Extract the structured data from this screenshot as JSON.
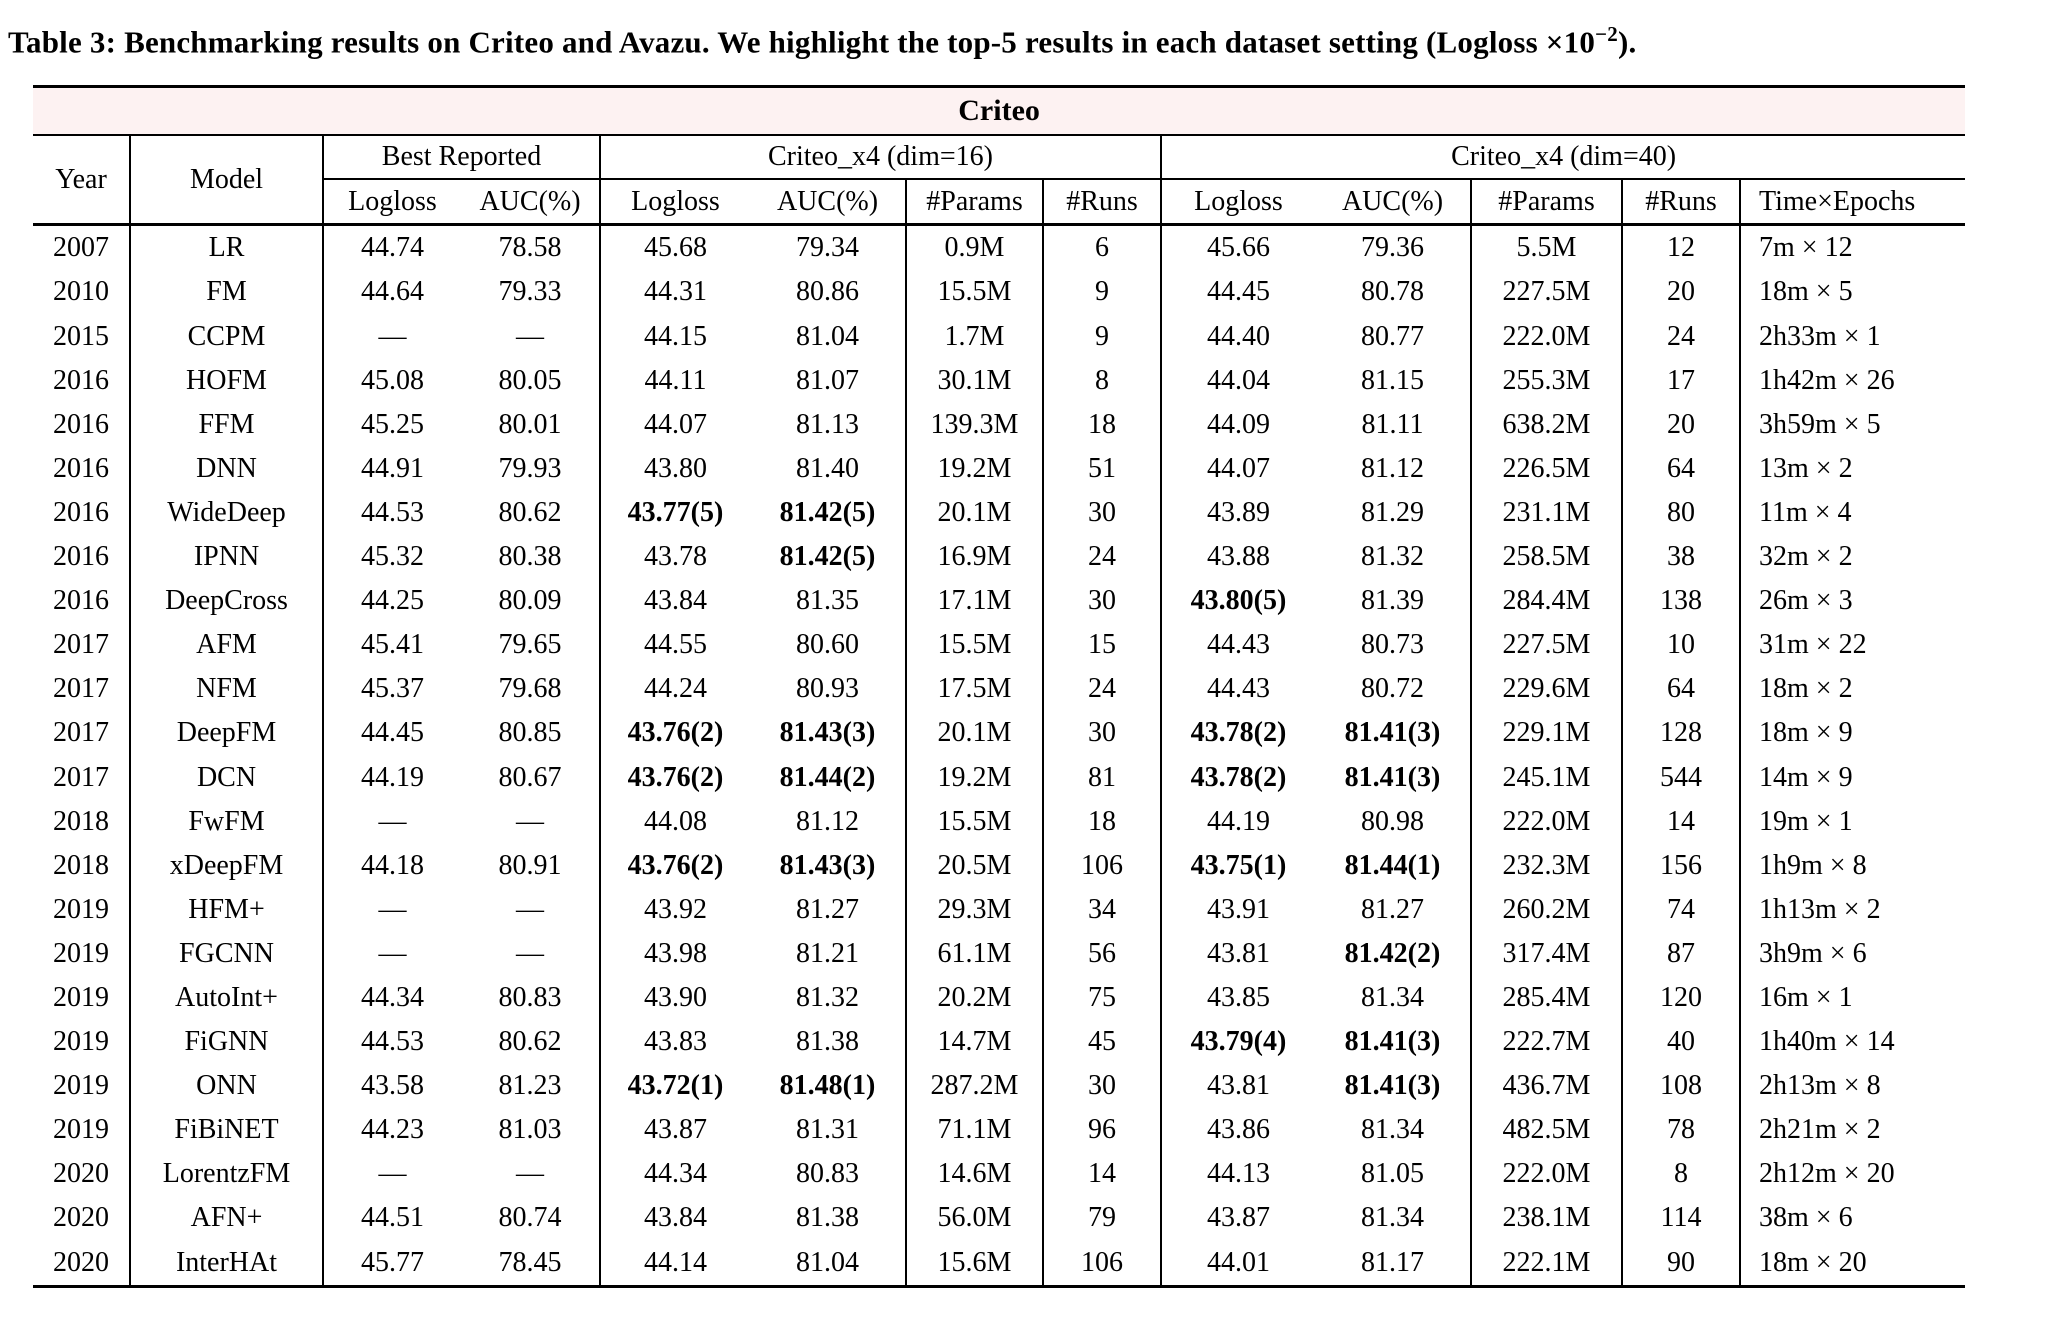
{
  "title": {
    "prefix": "Table 3: Benchmarking results on Criteo and Avazu. We highlight the top-5 results in each dataset setting (Logloss ×10",
    "sup": "−2",
    "suffix": ")."
  },
  "colors": {
    "banner_bg": "#FDF2F2",
    "rule_color": "#000000"
  },
  "table": {
    "banner": "Criteo",
    "groups": {
      "best_reported": "Best Reported",
      "dim16": "Criteo_x4 (dim=16)",
      "dim40": "Criteo_x4 (dim=40)"
    },
    "columns": {
      "year": "Year",
      "model": "Model",
      "logloss": "Logloss",
      "auc": "AUC(%)",
      "params": "#Params",
      "runs": "#Runs",
      "time": "Time×Epochs"
    },
    "rows": [
      {
        "cells": [
          "2007",
          "LR",
          "44.74",
          "78.58",
          "45.68",
          "79.34",
          "0.9M",
          "6",
          "45.66",
          "79.36",
          "5.5M",
          "12",
          "7m × 12"
        ],
        "bold": []
      },
      {
        "cells": [
          "2010",
          "FM",
          "44.64",
          "79.33",
          "44.31",
          "80.86",
          "15.5M",
          "9",
          "44.45",
          "80.78",
          "227.5M",
          "20",
          "18m × 5"
        ],
        "bold": []
      },
      {
        "cells": [
          "2015",
          "CCPM",
          "—",
          "—",
          "44.15",
          "81.04",
          "1.7M",
          "9",
          "44.40",
          "80.77",
          "222.0M",
          "24",
          "2h33m × 1"
        ],
        "bold": []
      },
      {
        "cells": [
          "2016",
          "HOFM",
          "45.08",
          "80.05",
          "44.11",
          "81.07",
          "30.1M",
          "8",
          "44.04",
          "81.15",
          "255.3M",
          "17",
          "1h42m × 26"
        ],
        "bold": []
      },
      {
        "cells": [
          "2016",
          "FFM",
          "45.25",
          "80.01",
          "44.07",
          "81.13",
          "139.3M",
          "18",
          "44.09",
          "81.11",
          "638.2M",
          "20",
          "3h59m × 5"
        ],
        "bold": []
      },
      {
        "cells": [
          "2016",
          "DNN",
          "44.91",
          "79.93",
          "43.80",
          "81.40",
          "19.2M",
          "51",
          "44.07",
          "81.12",
          "226.5M",
          "64",
          "13m × 2"
        ],
        "bold": []
      },
      {
        "cells": [
          "2016",
          "WideDeep",
          "44.53",
          "80.62",
          "43.77(5)",
          "81.42(5)",
          "20.1M",
          "30",
          "43.89",
          "81.29",
          "231.1M",
          "80",
          "11m × 4"
        ],
        "bold": [
          4,
          5
        ]
      },
      {
        "cells": [
          "2016",
          "IPNN",
          "45.32",
          "80.38",
          "43.78",
          "81.42(5)",
          "16.9M",
          "24",
          "43.88",
          "81.32",
          "258.5M",
          "38",
          "32m × 2"
        ],
        "bold": [
          5
        ]
      },
      {
        "cells": [
          "2016",
          "DeepCross",
          "44.25",
          "80.09",
          "43.84",
          "81.35",
          "17.1M",
          "30",
          "43.80(5)",
          "81.39",
          "284.4M",
          "138",
          "26m × 3"
        ],
        "bold": [
          8
        ]
      },
      {
        "cells": [
          "2017",
          "AFM",
          "45.41",
          "79.65",
          "44.55",
          "80.60",
          "15.5M",
          "15",
          "44.43",
          "80.73",
          "227.5M",
          "10",
          "31m × 22"
        ],
        "bold": []
      },
      {
        "cells": [
          "2017",
          "NFM",
          "45.37",
          "79.68",
          "44.24",
          "80.93",
          "17.5M",
          "24",
          "44.43",
          "80.72",
          "229.6M",
          "64",
          "18m × 2"
        ],
        "bold": []
      },
      {
        "cells": [
          "2017",
          "DeepFM",
          "44.45",
          "80.85",
          "43.76(2)",
          "81.43(3)",
          "20.1M",
          "30",
          "43.78(2)",
          "81.41(3)",
          "229.1M",
          "128",
          "18m × 9"
        ],
        "bold": [
          4,
          5,
          8,
          9
        ]
      },
      {
        "cells": [
          "2017",
          "DCN",
          "44.19",
          "80.67",
          "43.76(2)",
          "81.44(2)",
          "19.2M",
          "81",
          "43.78(2)",
          "81.41(3)",
          "245.1M",
          "544",
          "14m × 9"
        ],
        "bold": [
          4,
          5,
          8,
          9
        ]
      },
      {
        "cells": [
          "2018",
          "FwFM",
          "—",
          "—",
          "44.08",
          "81.12",
          "15.5M",
          "18",
          "44.19",
          "80.98",
          "222.0M",
          "14",
          "19m × 1"
        ],
        "bold": []
      },
      {
        "cells": [
          "2018",
          "xDeepFM",
          "44.18",
          "80.91",
          "43.76(2)",
          "81.43(3)",
          "20.5M",
          "106",
          "43.75(1)",
          "81.44(1)",
          "232.3M",
          "156",
          "1h9m × 8"
        ],
        "bold": [
          4,
          5,
          8,
          9
        ]
      },
      {
        "cells": [
          "2019",
          "HFM+",
          "—",
          "—",
          "43.92",
          "81.27",
          "29.3M",
          "34",
          "43.91",
          "81.27",
          "260.2M",
          "74",
          "1h13m × 2"
        ],
        "bold": []
      },
      {
        "cells": [
          "2019",
          "FGCNN",
          "—",
          "—",
          "43.98",
          "81.21",
          "61.1M",
          "56",
          "43.81",
          "81.42(2)",
          "317.4M",
          "87",
          "3h9m × 6"
        ],
        "bold": [
          9
        ]
      },
      {
        "cells": [
          "2019",
          "AutoInt+",
          "44.34",
          "80.83",
          "43.90",
          "81.32",
          "20.2M",
          "75",
          "43.85",
          "81.34",
          "285.4M",
          "120",
          "16m × 1"
        ],
        "bold": []
      },
      {
        "cells": [
          "2019",
          "FiGNN",
          "44.53",
          "80.62",
          "43.83",
          "81.38",
          "14.7M",
          "45",
          "43.79(4)",
          "81.41(3)",
          "222.7M",
          "40",
          "1h40m × 14"
        ],
        "bold": [
          8,
          9
        ]
      },
      {
        "cells": [
          "2019",
          "ONN",
          "43.58",
          "81.23",
          "43.72(1)",
          "81.48(1)",
          "287.2M",
          "30",
          "43.81",
          "81.41(3)",
          "436.7M",
          "108",
          "2h13m × 8"
        ],
        "bold": [
          4,
          5,
          9
        ]
      },
      {
        "cells": [
          "2019",
          "FiBiNET",
          "44.23",
          "81.03",
          "43.87",
          "81.31",
          "71.1M",
          "96",
          "43.86",
          "81.34",
          "482.5M",
          "78",
          "2h21m × 2"
        ],
        "bold": []
      },
      {
        "cells": [
          "2020",
          "LorentzFM",
          "—",
          "—",
          "44.34",
          "80.83",
          "14.6M",
          "14",
          "44.13",
          "81.05",
          "222.0M",
          "8",
          "2h12m × 20"
        ],
        "bold": []
      },
      {
        "cells": [
          "2020",
          "AFN+",
          "44.51",
          "80.74",
          "43.84",
          "81.38",
          "56.0M",
          "79",
          "43.87",
          "81.34",
          "238.1M",
          "114",
          "38m × 6"
        ],
        "bold": []
      },
      {
        "cells": [
          "2020",
          "InterHAt",
          "45.77",
          "78.45",
          "44.14",
          "81.04",
          "15.6M",
          "106",
          "44.01",
          "81.17",
          "222.1M",
          "90",
          "18m × 20"
        ],
        "bold": []
      }
    ]
  }
}
